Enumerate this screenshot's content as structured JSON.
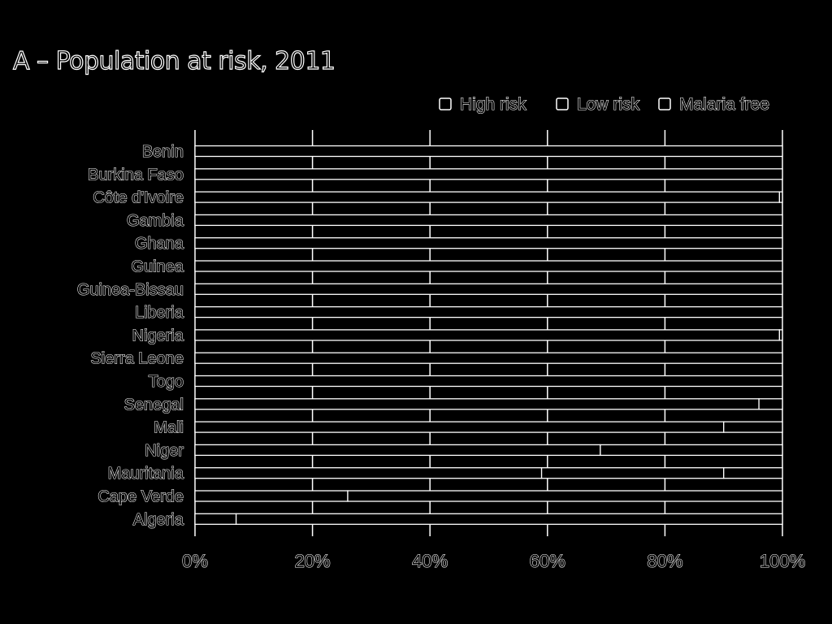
{
  "chart_data": {
    "type": "bar",
    "stacked": true,
    "orientation": "horizontal",
    "title": "A – Population at risk, 2011",
    "xlabel": "",
    "ylabel": "",
    "xlim": [
      0,
      100
    ],
    "x_ticks": [
      "0%",
      "20%",
      "40%",
      "60%",
      "80%",
      "100%"
    ],
    "grid": true,
    "legend_position": "top-right",
    "categories": [
      "Benin",
      "Burkina Faso",
      "Côte d'Ivoire",
      "Gambia",
      "Ghana",
      "Guinea",
      "Guinea-Bissau",
      "Liberia",
      "Nigeria",
      "Sierra Leone",
      "Togo",
      "Senegal",
      "Mali",
      "Niger",
      "Mauritania",
      "Cape Verde",
      "Algeria"
    ],
    "series": [
      {
        "name": "High risk",
        "values": [
          100,
          100,
          99.5,
          100,
          100,
          100,
          100,
          100,
          99.5,
          100,
          100,
          96,
          90,
          69,
          59,
          26,
          7
        ]
      },
      {
        "name": "Low risk",
        "values": [
          0,
          0,
          0.5,
          0,
          0,
          0,
          0,
          0,
          0.5,
          0,
          0,
          4,
          10,
          31,
          31,
          74,
          0
        ]
      },
      {
        "name": "Malaria free",
        "values": [
          0,
          0,
          0,
          0,
          0,
          0,
          0,
          0,
          0,
          0,
          0,
          0,
          0,
          0,
          10,
          0,
          93
        ]
      }
    ]
  }
}
